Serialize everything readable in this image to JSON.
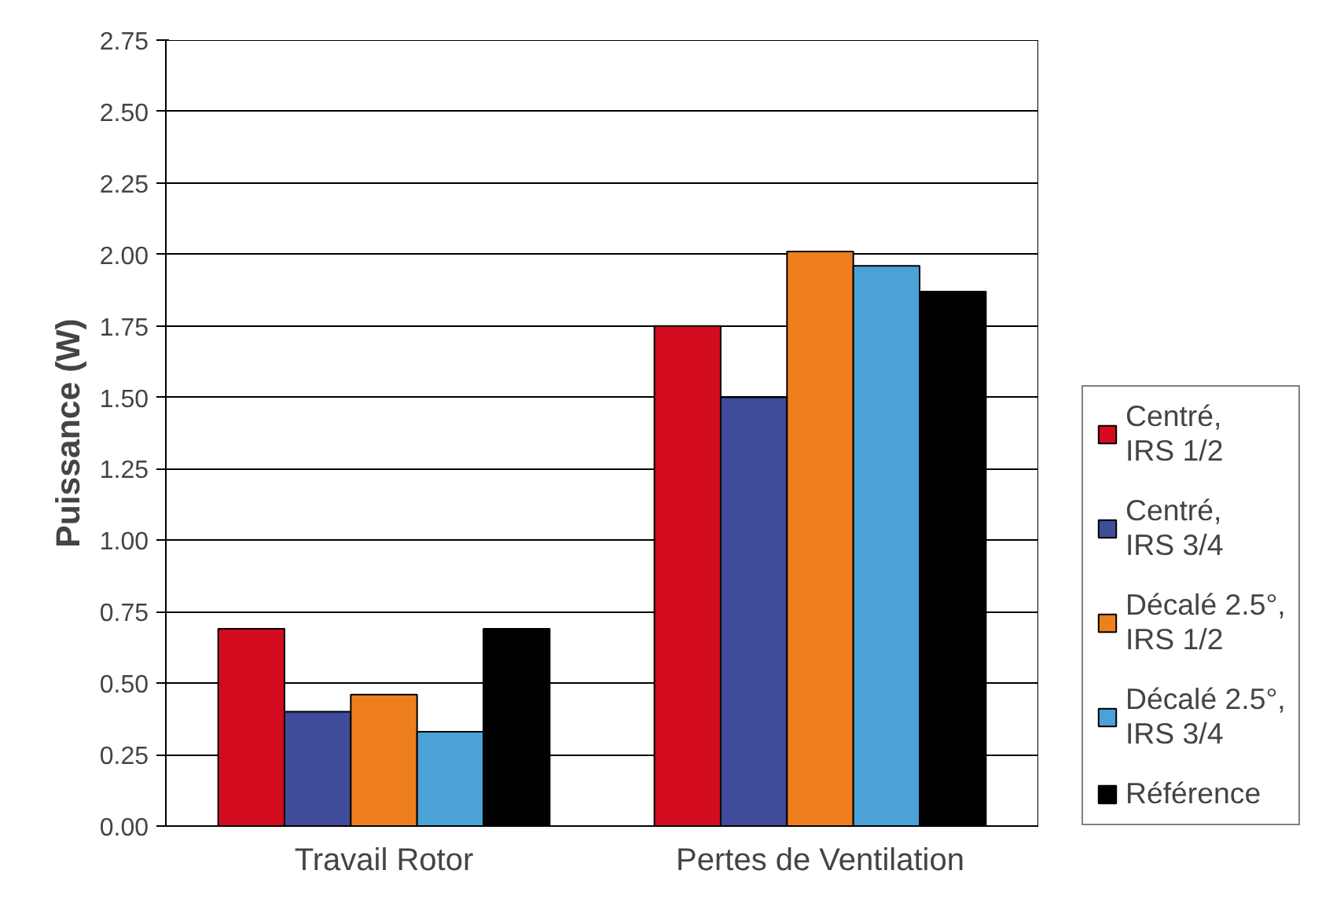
{
  "chart_data": {
    "type": "bar",
    "ylabel": "Puissance (W)",
    "categories": [
      "Travail Rotor",
      "Pertes de Ventilation"
    ],
    "series": [
      {
        "name": "Centré, IRS 1/2",
        "color": "#d20c1e",
        "values": [
          0.69,
          1.75
        ]
      },
      {
        "name": "Centré, IRS 3/4",
        "color": "#3e4c9a",
        "values": [
          0.4,
          1.5
        ]
      },
      {
        "name": "Décalé 2.5°, IRS 1/2",
        "color": "#ee7e1e",
        "values": [
          0.46,
          2.01
        ]
      },
      {
        "name": "Décalé 2.5°, IRS 3/4",
        "color": "#4ba2d7",
        "values": [
          0.33,
          1.96
        ]
      },
      {
        "name": "Référence",
        "color": "#000000",
        "values": [
          0.69,
          1.87
        ]
      }
    ],
    "ylim": [
      0,
      2.75
    ],
    "yticks": [
      {
        "value": 0,
        "label": "0.00"
      },
      {
        "value": 0.25,
        "label": "0.25"
      },
      {
        "value": 0.5,
        "label": "0.50"
      },
      {
        "value": 0.75,
        "label": "0.75"
      },
      {
        "value": 1,
        "label": "1.00"
      },
      {
        "value": 1.25,
        "label": "1.25"
      },
      {
        "value": 1.5,
        "label": "1.50"
      },
      {
        "value": 1.75,
        "label": "1.75"
      },
      {
        "value": 2,
        "label": "2.00"
      },
      {
        "value": 2.25,
        "label": "2.25"
      },
      {
        "value": 2.5,
        "label": "2.50"
      },
      {
        "value": 2.75,
        "label": "2.75"
      }
    ],
    "grid": "y",
    "legend": "right"
  }
}
